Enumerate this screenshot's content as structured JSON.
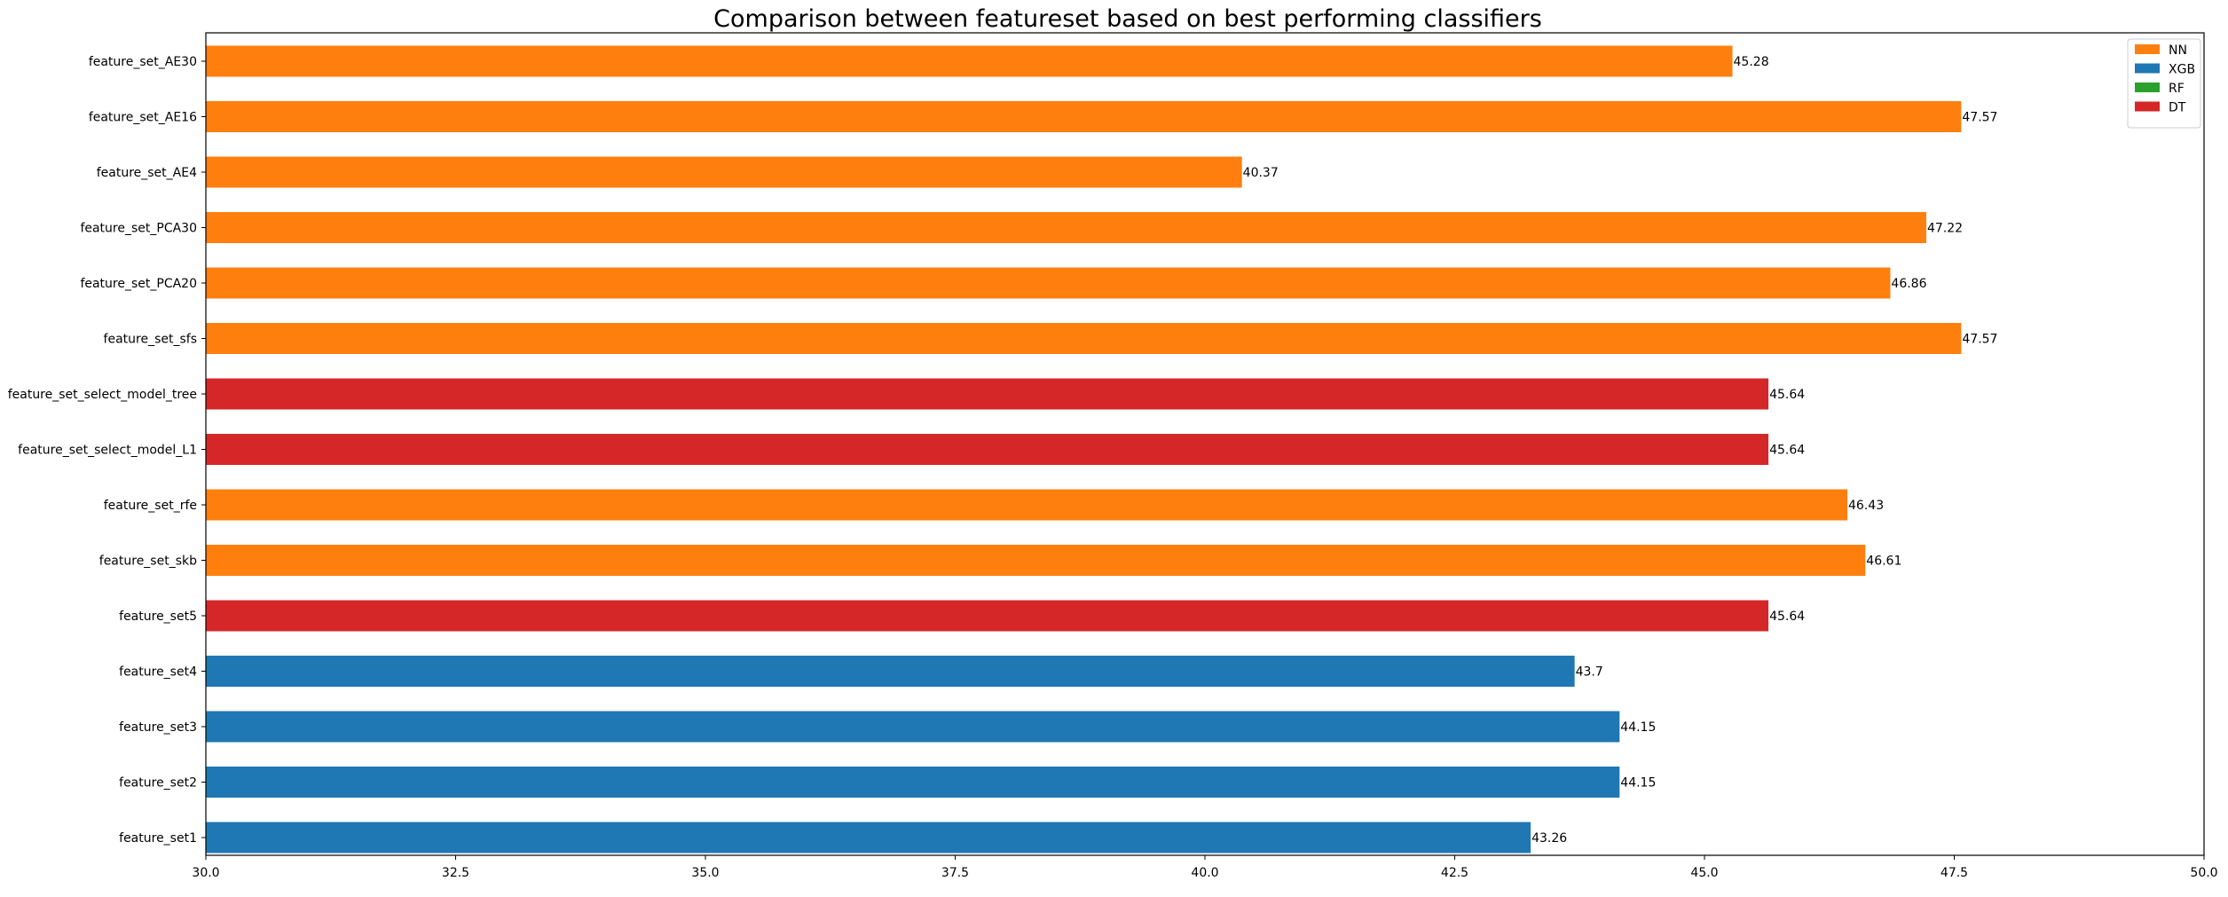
{
  "chart_data": {
    "type": "bar",
    "orientation": "horizontal",
    "title": "Comparison between featureset based on best performing classifiers",
    "xlabel": "",
    "ylabel": "",
    "xlim": [
      30,
      50
    ],
    "xticks": [
      30.0,
      32.5,
      35.0,
      37.5,
      40.0,
      42.5,
      45.0,
      47.5,
      50.0
    ],
    "xtick_labels": [
      "30.0",
      "32.5",
      "35.0",
      "37.5",
      "40.0",
      "42.5",
      "45.0",
      "47.5",
      "50.0"
    ],
    "grid": false,
    "legend_position": "top-right",
    "legend": [
      {
        "name": "NN",
        "color": "#ff7f0e"
      },
      {
        "name": "XGB",
        "color": "#1f77b4"
      },
      {
        "name": "RF",
        "color": "#2ca02c"
      },
      {
        "name": "DT",
        "color": "#d62728"
      }
    ],
    "bars": [
      {
        "category": "feature_set1",
        "value": 43.26,
        "label": "43.26",
        "classifier": "XGB"
      },
      {
        "category": "feature_set2",
        "value": 44.15,
        "label": "44.15",
        "classifier": "XGB"
      },
      {
        "category": "feature_set3",
        "value": 44.15,
        "label": "44.15",
        "classifier": "XGB"
      },
      {
        "category": "feature_set4",
        "value": 43.7,
        "label": "43.7",
        "classifier": "XGB"
      },
      {
        "category": "feature_set5",
        "value": 45.64,
        "label": "45.64",
        "classifier": "DT"
      },
      {
        "category": "feature_set_skb",
        "value": 46.61,
        "label": "46.61",
        "classifier": "NN"
      },
      {
        "category": "feature_set_rfe",
        "value": 46.43,
        "label": "46.43",
        "classifier": "NN"
      },
      {
        "category": "feature_set_select_model_L1",
        "value": 45.64,
        "label": "45.64",
        "classifier": "DT"
      },
      {
        "category": "feature_set_select_model_tree",
        "value": 45.64,
        "label": "45.64",
        "classifier": "DT"
      },
      {
        "category": "feature_set_sfs",
        "value": 47.57,
        "label": "47.57",
        "classifier": "NN"
      },
      {
        "category": "feature_set_PCA20",
        "value": 46.86,
        "label": "46.86",
        "classifier": "NN"
      },
      {
        "category": "feature_set_PCA30",
        "value": 47.22,
        "label": "47.22",
        "classifier": "NN"
      },
      {
        "category": "feature_set_AE4",
        "value": 40.37,
        "label": "40.37",
        "classifier": "NN"
      },
      {
        "category": "feature_set_AE16",
        "value": 47.57,
        "label": "47.57",
        "classifier": "NN"
      },
      {
        "category": "feature_set_AE30",
        "value": 45.28,
        "label": "45.28",
        "classifier": "NN"
      }
    ]
  }
}
